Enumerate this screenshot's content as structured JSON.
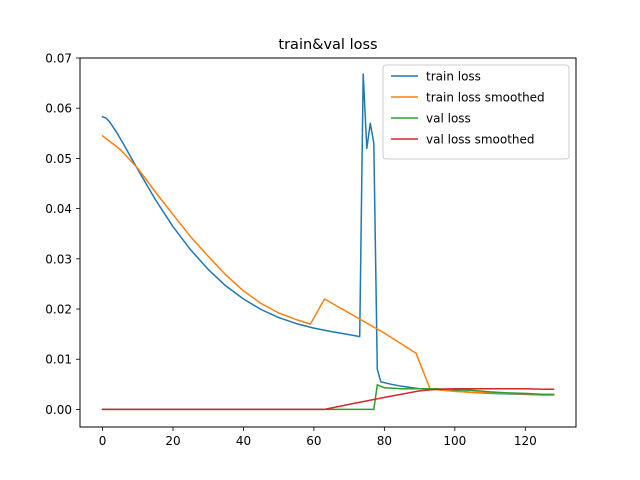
{
  "chart_data": {
    "type": "line",
    "title": "train&val loss",
    "xlabel": "",
    "ylabel": "",
    "xlim": [
      -6.4,
      134.4
    ],
    "ylim": [
      -0.0035,
      0.07
    ],
    "xticks": [
      0,
      20,
      40,
      60,
      80,
      100,
      120
    ],
    "xtick_labels": [
      "0",
      "20",
      "40",
      "60",
      "80",
      "100",
      "120"
    ],
    "yticks": [
      0.0,
      0.01,
      0.02,
      0.03,
      0.04,
      0.05,
      0.06,
      0.07
    ],
    "ytick_labels": [
      "0.00",
      "0.01",
      "0.02",
      "0.03",
      "0.04",
      "0.05",
      "0.06",
      "0.07"
    ],
    "grid": false,
    "legend": "upper-right",
    "series": [
      {
        "name": "train loss",
        "color": "#1f77b4",
        "x": [
          0,
          1,
          2,
          4,
          6,
          8,
          10,
          15,
          20,
          25,
          30,
          35,
          40,
          45,
          50,
          55,
          60,
          65,
          70,
          73,
          74,
          75,
          76,
          77,
          78,
          79,
          82,
          85,
          90,
          95,
          100,
          105,
          110,
          115,
          120,
          125,
          128
        ],
        "y": [
          0.0583,
          0.058,
          0.0573,
          0.0552,
          0.0528,
          0.0503,
          0.0478,
          0.0418,
          0.0364,
          0.0318,
          0.0279,
          0.0246,
          0.022,
          0.0199,
          0.0183,
          0.0171,
          0.0162,
          0.0155,
          0.0149,
          0.0145,
          0.0668,
          0.052,
          0.057,
          0.053,
          0.008,
          0.0055,
          0.005,
          0.0046,
          0.0041,
          0.0039,
          0.0037,
          0.0034,
          0.0032,
          0.0031,
          0.003,
          0.0029,
          0.0029
        ]
      },
      {
        "name": "train loss smoothed",
        "color": "#ff7f0e",
        "x": [
          0,
          5,
          10,
          15,
          20,
          25,
          30,
          35,
          40,
          45,
          50,
          55,
          59,
          63,
          70,
          80,
          89,
          93,
          95,
          100,
          105,
          110,
          115,
          120,
          125,
          128
        ],
        "y": [
          0.0545,
          0.0518,
          0.048,
          0.0433,
          0.0388,
          0.0344,
          0.0305,
          0.0268,
          0.0236,
          0.0211,
          0.0192,
          0.0179,
          0.017,
          0.022,
          0.0192,
          0.0152,
          0.0112,
          0.004,
          0.0039,
          0.0036,
          0.0034,
          0.0033,
          0.0032,
          0.0031,
          0.003,
          0.003
        ]
      },
      {
        "name": "val loss",
        "color": "#2ca02c",
        "x": [
          0,
          20,
          40,
          60,
          77,
          78,
          80,
          85,
          90,
          95,
          100,
          105,
          110,
          115,
          120,
          125,
          128
        ],
        "y": [
          0.0,
          0.0,
          0.0,
          0.0,
          0.0,
          0.0049,
          0.0043,
          0.0041,
          0.0041,
          0.0041,
          0.0039,
          0.0038,
          0.0035,
          0.0033,
          0.0032,
          0.003,
          0.003
        ]
      },
      {
        "name": "val loss smoothed",
        "color": "#d62728",
        "x": [
          0,
          20,
          40,
          60,
          63,
          70,
          80,
          90,
          95,
          100,
          105,
          110,
          115,
          120,
          125,
          128
        ],
        "y": [
          0.0,
          0.0,
          0.0,
          0.0,
          0.0,
          0.001,
          0.0024,
          0.0037,
          0.004,
          0.0041,
          0.0041,
          0.0041,
          0.0041,
          0.0041,
          0.004,
          0.004
        ]
      }
    ]
  }
}
